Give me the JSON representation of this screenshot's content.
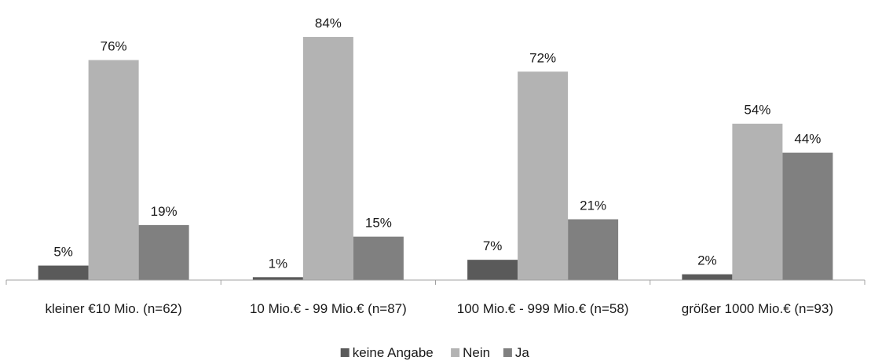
{
  "chart_data": {
    "type": "bar",
    "categories": [
      "kleiner €10 Mio. (n=62)",
      "10 Mio.€  - 99 Mio.€ (n=87)",
      "100 Mio.€ - 999 Mio.€ (n=58)",
      "größer 1000 Mio.€ (n=93)"
    ],
    "series": [
      {
        "name": "keine Angabe",
        "values": [
          5,
          1,
          7,
          2
        ],
        "labels": [
          "5%",
          "1%",
          "7%",
          "2%"
        ],
        "color": "#5a5a5a"
      },
      {
        "name": "Nein",
        "values": [
          76,
          84,
          72,
          54
        ],
        "labels": [
          "76%",
          "84%",
          "72%",
          "54%"
        ],
        "color": "#b3b3b3"
      },
      {
        "name": "Ja",
        "values": [
          19,
          15,
          21,
          44
        ],
        "labels": [
          "19%",
          "15%",
          "21%",
          "44%"
        ],
        "color": "#808080"
      }
    ],
    "ylim": [
      0,
      90
    ],
    "unit": "%",
    "grid": false,
    "legend_position": "bottom",
    "title": "",
    "xlabel": "",
    "ylabel": ""
  }
}
